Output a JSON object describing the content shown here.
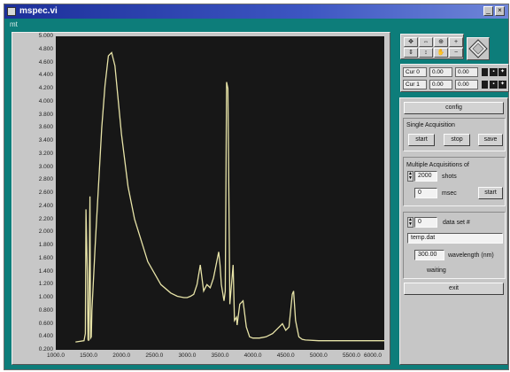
{
  "window": {
    "title": "mspec.vi"
  },
  "menu": {
    "label": "mt"
  },
  "graph": {
    "y_ticks": [
      "5.000",
      "4.800",
      "4.600",
      "4.400",
      "4.200",
      "4.000",
      "3.800",
      "3.600",
      "3.400",
      "3.200",
      "3.000",
      "2.800",
      "2.600",
      "2.400",
      "2.200",
      "2.000",
      "1.800",
      "1.600",
      "1.400",
      "1.200",
      "1.000",
      "0.800",
      "0.600",
      "0.400",
      "0.200"
    ],
    "x_ticks": [
      "1000.0",
      "1500.0",
      "2000.0",
      "2500.0",
      "3000.0",
      "3500.0",
      "4000.0",
      "4500.0",
      "5000.0",
      "5500.0",
      "6000.0"
    ]
  },
  "chart_data": {
    "type": "line",
    "xlim": [
      1000,
      6000
    ],
    "ylim": [
      0.2,
      5.0
    ],
    "grid": false,
    "series": [
      {
        "color": "#e8e4a8",
        "x": [
          1300,
          1430,
          1450,
          1460,
          1480,
          1490,
          1500,
          1520,
          1530,
          1540,
          1550,
          1600,
          1700,
          1750,
          1800,
          1850,
          1900,
          2000,
          2100,
          2200,
          2400,
          2600,
          2750,
          2850,
          2900,
          2950,
          3000,
          3050,
          3100,
          3150,
          3200,
          3250,
          3300,
          3350,
          3400,
          3450,
          3480,
          3500,
          3520,
          3560,
          3580,
          3600,
          3620,
          3650,
          3700,
          3720,
          3750,
          3760,
          3800,
          3850,
          3900,
          3950,
          4000,
          4100,
          4200,
          4300,
          4400,
          4450,
          4500,
          4550,
          4600,
          4620,
          4650,
          4700,
          4750,
          4800,
          5000,
          5500,
          6000
        ],
        "y": [
          0.32,
          0.34,
          0.45,
          2.35,
          1.4,
          0.36,
          0.34,
          2.55,
          0.38,
          0.4,
          0.8,
          1.8,
          3.6,
          4.25,
          4.7,
          4.75,
          4.55,
          3.5,
          2.7,
          2.2,
          1.55,
          1.2,
          1.07,
          1.02,
          1.01,
          1.0,
          1.0,
          1.02,
          1.05,
          1.2,
          1.5,
          1.1,
          1.2,
          1.15,
          1.3,
          1.55,
          1.7,
          1.5,
          1.2,
          0.95,
          1.1,
          4.3,
          4.2,
          0.9,
          1.5,
          0.65,
          0.7,
          0.58,
          0.9,
          0.95,
          0.55,
          0.4,
          0.38,
          0.38,
          0.4,
          0.45,
          0.55,
          0.6,
          0.5,
          0.55,
          1.05,
          1.1,
          0.65,
          0.4,
          0.36,
          0.35,
          0.34,
          0.34,
          0.34
        ]
      }
    ]
  },
  "cursors": [
    {
      "name": "Cur 0",
      "x": "0.00",
      "y": "0.00"
    },
    {
      "name": "Cur 1",
      "x": "0.00",
      "y": "0.00"
    }
  ],
  "panel": {
    "config_label": "config",
    "single": {
      "title": "Single Acquisition",
      "start": "start",
      "stop": "stop",
      "save": "save"
    },
    "multiple": {
      "title": "Multiple Acquisitions of",
      "count_value": "2000",
      "count_unit": "shots",
      "every_value": "0",
      "every_unit": "msec",
      "start": "start"
    },
    "dataset": {
      "number": "0",
      "label": "data set #",
      "filename": "temp.dat",
      "wavelength_value": "300.00",
      "wavelength_label": "wavelength (nm)",
      "status": "waiting"
    },
    "exit_label": "exit"
  }
}
